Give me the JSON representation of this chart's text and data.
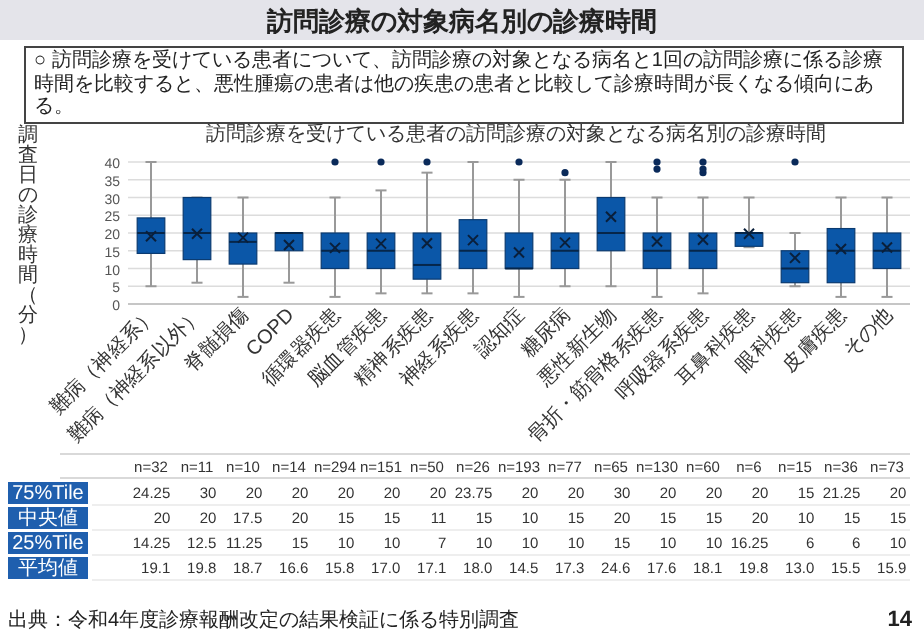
{
  "chart_data": {
    "type": "box",
    "title": "訪問診療の対象病名別の診療時間",
    "subtitle": "訪問診療を受けている患者の訪問診療の対象となる病名別の診療時間",
    "ylabel": "調査日の診療時間（分）",
    "categories": [
      "難病（神経系）",
      "難病（神経系以外）",
      "脊髄損傷",
      "COPD",
      "循環器疾患",
      "脳血管疾患",
      "精神系疾患",
      "神経系疾患",
      "認知症",
      "糖尿病",
      "悪性新生物",
      "骨折・筋骨格系疾患",
      "呼吸器系疾患",
      "耳鼻科疾患",
      "眼科疾患",
      "皮膚疾患",
      "その他"
    ],
    "boxes": [
      {
        "low": 5,
        "q1": 14.25,
        "median": 20,
        "q3": 24.25,
        "high": 40,
        "mean": 19.1
      },
      {
        "low": 6,
        "q1": 12.5,
        "median": 20,
        "q3": 30,
        "high": 30,
        "mean": 19.8
      },
      {
        "low": 2,
        "q1": 11.25,
        "median": 17.5,
        "q3": 20,
        "high": 30,
        "mean": 18.7
      },
      {
        "low": 6,
        "q1": 15,
        "median": 20,
        "q3": 20,
        "high": 20,
        "mean": 16.6
      },
      {
        "low": 2,
        "q1": 10,
        "median": 15,
        "q3": 20,
        "high": 30,
        "mean": 15.8,
        "outliers": [
          40
        ]
      },
      {
        "low": 3,
        "q1": 10,
        "median": 15,
        "q3": 20,
        "high": 32,
        "mean": 17.0,
        "outliers": [
          40
        ]
      },
      {
        "low": 3,
        "q1": 7,
        "median": 11,
        "q3": 20,
        "high": 37,
        "mean": 17.1,
        "outliers": [
          40
        ]
      },
      {
        "low": 3,
        "q1": 10,
        "median": 15,
        "q3": 23.75,
        "high": 40,
        "mean": 18.0
      },
      {
        "low": 2,
        "q1": 10,
        "median": 10,
        "q3": 20,
        "high": 35,
        "mean": 14.5,
        "outliers": [
          40
        ]
      },
      {
        "low": 5,
        "q1": 10,
        "median": 15,
        "q3": 20,
        "high": 35,
        "mean": 17.3,
        "outliers": [
          37
        ]
      },
      {
        "low": 5,
        "q1": 15,
        "median": 20,
        "q3": 30,
        "high": 40,
        "mean": 24.6
      },
      {
        "low": 2,
        "q1": 10,
        "median": 15,
        "q3": 20,
        "high": 30,
        "mean": 17.6,
        "outliers": [
          38,
          40
        ]
      },
      {
        "low": 3,
        "q1": 10,
        "median": 15,
        "q3": 20,
        "high": 30,
        "mean": 18.1,
        "outliers": [
          37,
          38,
          40
        ]
      },
      {
        "low": 16,
        "q1": 16.25,
        "median": 20,
        "q3": 20,
        "high": 30,
        "mean": 19.8
      },
      {
        "low": 5,
        "q1": 6,
        "median": 10,
        "q3": 15,
        "high": 20,
        "mean": 13.0,
        "outliers": [
          40
        ]
      },
      {
        "low": 2,
        "q1": 6,
        "median": 15,
        "q3": 21.25,
        "high": 30,
        "mean": 15.5
      },
      {
        "low": 2,
        "q1": 10,
        "median": 15,
        "q3": 20,
        "high": 30,
        "mean": 15.9
      }
    ],
    "color": "#0b57a8",
    "ylim": [
      0,
      40
    ],
    "yticks": [
      0,
      5,
      10,
      15,
      20,
      25,
      30,
      35,
      40
    ],
    "grid": "y",
    "marker": "cross",
    "annotations": [
      "○ 訪問診療を受けている患者について、訪問診療の対象となる病名と1回の訪問診療に係る診療時間を比較すると、悪性腫瘍の患者は他の疾患の患者と比較して診療時間が長くなる傾向にある。",
      "出典：令和4年度診療報酬改定の結果検証に係る特別調査",
      "n=32",
      "n=11",
      "n=10",
      "n=14",
      "n=294",
      "n=151",
      "n=50",
      "n=26",
      "n=193",
      "n=77",
      "n=65",
      "n=130",
      "n=60",
      "n=6",
      "n=15",
      "n=36",
      "n=73",
      "75%Tile",
      "24.25",
      "30",
      "20",
      "20",
      "20",
      "20",
      "20",
      "23.75",
      "20",
      "20",
      "30",
      "20",
      "20",
      "20",
      "15",
      "21.25",
      "20",
      "中央値",
      "20",
      "20",
      "17.5",
      "20",
      "15",
      "15",
      "11",
      "15",
      "10",
      "15",
      "20",
      "15",
      "15",
      "20",
      "10",
      "15",
      "15",
      "25%Tile",
      "14.25",
      "12.5",
      "11.25",
      "15",
      "10",
      "10",
      "7",
      "10",
      "10",
      "10",
      "15",
      "10",
      "10",
      "16.25",
      "6",
      "6",
      "10",
      "平均値",
      "19.1",
      "19.8",
      "18.7",
      "16.6",
      "15.8",
      "17.0",
      "17.1",
      "18.0",
      "14.5",
      "17.3",
      "24.6",
      "17.6",
      "18.1",
      "19.8",
      "13.0",
      "15.5",
      "15.9",
      "14"
    ]
  }
}
